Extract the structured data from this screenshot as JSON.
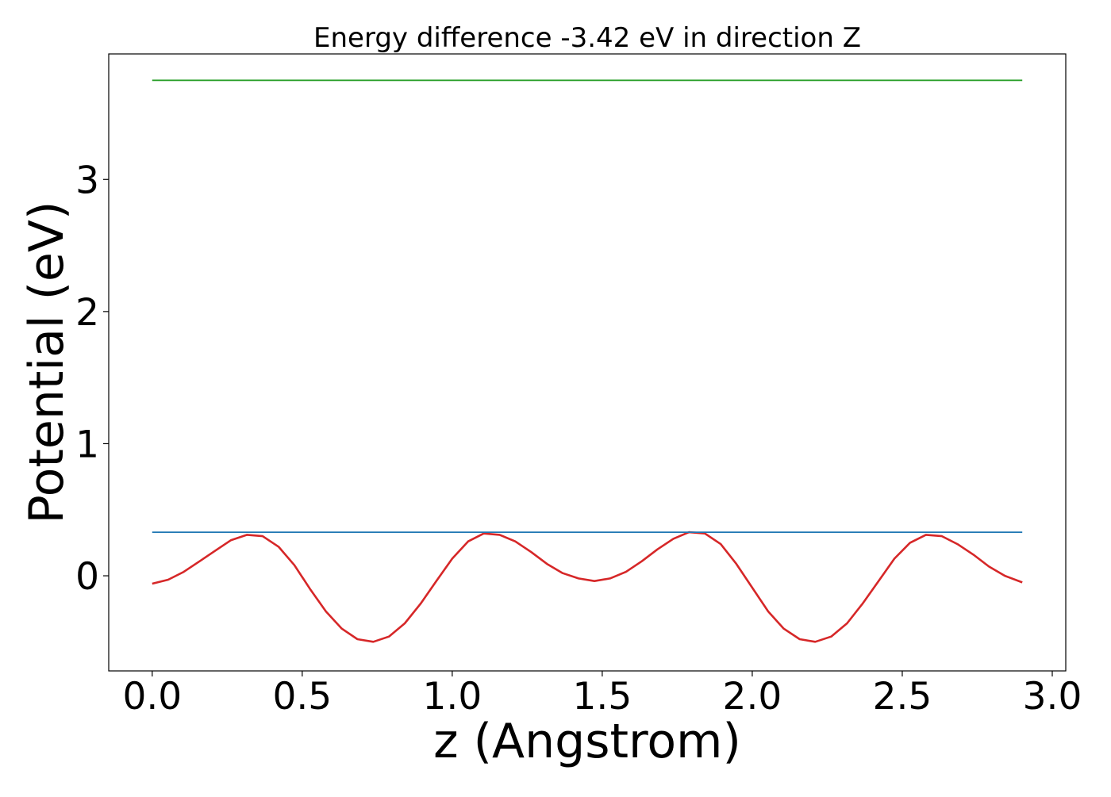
{
  "chart_data": {
    "type": "line",
    "title": "Energy difference -3.42 eV in direction Z",
    "xlabel": "z (Angstrom)",
    "ylabel": "Potential (eV)",
    "xlim": [
      -0.145,
      3.045
    ],
    "ylim": [
      -0.72,
      3.95
    ],
    "x_ticks": [
      0.0,
      0.5,
      1.0,
      1.5,
      2.0,
      2.5,
      3.0
    ],
    "x_tick_labels": [
      "0.0",
      "0.5",
      "1.0",
      "1.5",
      "2.0",
      "2.5",
      "3.0"
    ],
    "y_ticks": [
      0,
      1,
      2,
      3
    ],
    "y_tick_labels": [
      "0",
      "1",
      "2",
      "3"
    ],
    "grid": false,
    "legend": "none",
    "series": [
      {
        "color": "#d62728",
        "x": [
          0.0,
          0.053,
          0.105,
          0.158,
          0.21,
          0.263,
          0.316,
          0.368,
          0.421,
          0.474,
          0.526,
          0.579,
          0.632,
          0.684,
          0.737,
          0.789,
          0.842,
          0.895,
          0.947,
          1.0,
          1.053,
          1.105,
          1.158,
          1.21,
          1.263,
          1.316,
          1.368,
          1.421,
          1.474,
          1.526,
          1.579,
          1.632,
          1.684,
          1.737,
          1.789,
          1.842,
          1.895,
          1.947,
          2.0,
          2.053,
          2.105,
          2.158,
          2.21,
          2.263,
          2.316,
          2.368,
          2.421,
          2.474,
          2.526,
          2.579,
          2.632,
          2.684,
          2.737,
          2.789,
          2.842,
          2.9
        ],
        "y": [
          -0.06,
          -0.03,
          0.03,
          0.11,
          0.19,
          0.27,
          0.31,
          0.3,
          0.22,
          0.08,
          -0.1,
          -0.27,
          -0.4,
          -0.48,
          -0.5,
          -0.46,
          -0.36,
          -0.21,
          -0.04,
          0.13,
          0.26,
          0.32,
          0.31,
          0.26,
          0.18,
          0.09,
          0.02,
          -0.02,
          -0.04,
          -0.02,
          0.03,
          0.11,
          0.2,
          0.28,
          0.33,
          0.32,
          0.24,
          0.09,
          -0.09,
          -0.27,
          -0.4,
          -0.48,
          -0.5,
          -0.46,
          -0.36,
          -0.21,
          -0.04,
          0.13,
          0.25,
          0.31,
          0.3,
          0.24,
          0.16,
          0.07,
          0.0,
          -0.05
        ]
      },
      {
        "color": "#1f77b4",
        "x": [
          0.0,
          2.9
        ],
        "y": [
          0.33,
          0.33
        ]
      },
      {
        "color": "#2ca02c",
        "x": [
          0.0,
          2.9
        ],
        "y": [
          3.75,
          3.75
        ]
      }
    ]
  }
}
